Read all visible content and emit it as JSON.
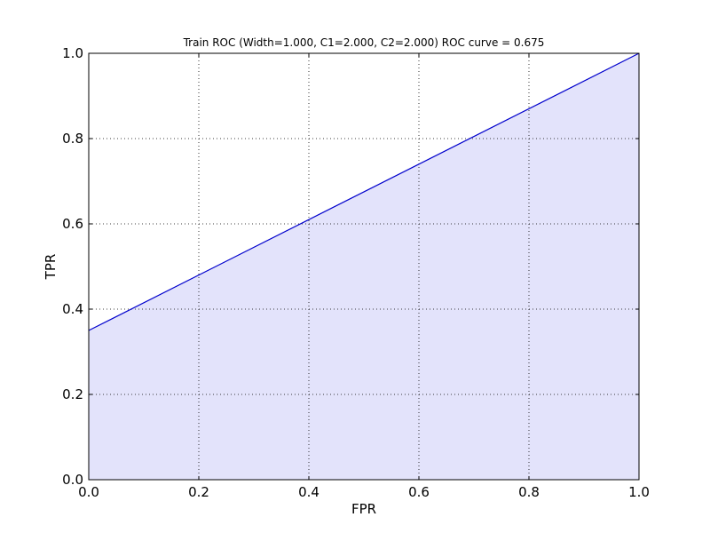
{
  "chart_data": {
    "type": "area",
    "title": "Train ROC (Width=1.000, C1=2.000, C2=2.000) ROC curve = 0.675",
    "xlabel": "FPR",
    "ylabel": "TPR",
    "xlim": [
      0.0,
      1.0
    ],
    "ylim": [
      0.0,
      1.0
    ],
    "xticks": [
      0.0,
      0.2,
      0.4,
      0.6,
      0.8,
      1.0
    ],
    "yticks": [
      0.0,
      0.2,
      0.4,
      0.6,
      0.8,
      1.0
    ],
    "xtick_labels": [
      "0.0",
      "0.2",
      "0.4",
      "0.6",
      "0.8",
      "1.0"
    ],
    "ytick_labels": [
      "0.0",
      "0.2",
      "0.4",
      "0.6",
      "0.8",
      "1.0"
    ],
    "grid": true,
    "series": [
      {
        "x": [
          0.0,
          1.0
        ],
        "y": [
          0.35,
          1.0
        ],
        "color": "#0000cc",
        "fill_color": "#e3e3fb"
      }
    ]
  }
}
